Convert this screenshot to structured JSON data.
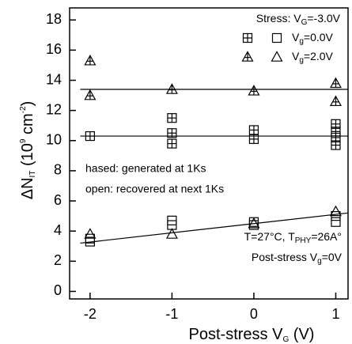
{
  "chart_data": {
    "type": "scatter",
    "x_label": [
      "Post-stress V",
      "G",
      " (V)"
    ],
    "y_label": [
      "ΔN",
      "IT",
      " (10",
      "9",
      " cm",
      "-2",
      ")"
    ],
    "xlim": [
      -2.25,
      1.15
    ],
    "ylim": [
      -0.5,
      18.8
    ],
    "xticks": [
      -2,
      -1,
      0,
      1
    ],
    "yticks": [
      0,
      2,
      4,
      6,
      8,
      10,
      12,
      14,
      16,
      18
    ],
    "legend": {
      "stress": [
        "Stress: V",
        "G",
        "=-3.0V"
      ],
      "row_square": [
        "V",
        "g",
        "=0.0V"
      ],
      "row_triangle": [
        "V",
        "g",
        "=2.0V"
      ]
    },
    "annotations": {
      "hatched": "hased: generated at 1Ks",
      "open": "open: recovered at next 1Ks",
      "temp": [
        "T=27°C, T",
        "PHY",
        "=26A°"
      ],
      "post": [
        "Post-stress V",
        "g",
        "=0V"
      ]
    },
    "series": [
      {
        "marker": "square-crossed",
        "color": "#000000",
        "x": [
          -2,
          -1,
          -1,
          -1,
          0,
          0,
          1,
          1,
          1,
          1
        ],
        "values": [
          10.3,
          11.5,
          10.5,
          9.8,
          10.7,
          10.1,
          11.1,
          10.6,
          10.2,
          9.7
        ]
      },
      {
        "marker": "square",
        "color": "#000000",
        "x": [
          -2,
          -2,
          -1,
          -1,
          0,
          0,
          1,
          1
        ],
        "values": [
          3.3,
          3.5,
          4.7,
          4.4,
          4.6,
          4.4,
          5.0,
          4.6
        ]
      },
      {
        "marker": "triangle-crossed",
        "color": "#000000",
        "x": [
          -2,
          -2,
          -1,
          0,
          1,
          1
        ],
        "values": [
          15.3,
          13.0,
          13.4,
          13.3,
          13.8,
          12.6
        ]
      },
      {
        "marker": "triangle",
        "color": "#000000",
        "x": [
          -2,
          -1,
          0,
          1
        ],
        "values": [
          3.8,
          3.8,
          4.5,
          5.3
        ]
      }
    ],
    "fit_lines": [
      {
        "x": [
          -2.12,
          1.15
        ],
        "values": [
          13.4,
          13.4
        ]
      },
      {
        "x": [
          -2.12,
          1.15
        ],
        "values": [
          10.3,
          10.3
        ]
      },
      {
        "x": [
          -2.12,
          1.15
        ],
        "values": [
          3.2,
          5.2
        ]
      }
    ]
  }
}
